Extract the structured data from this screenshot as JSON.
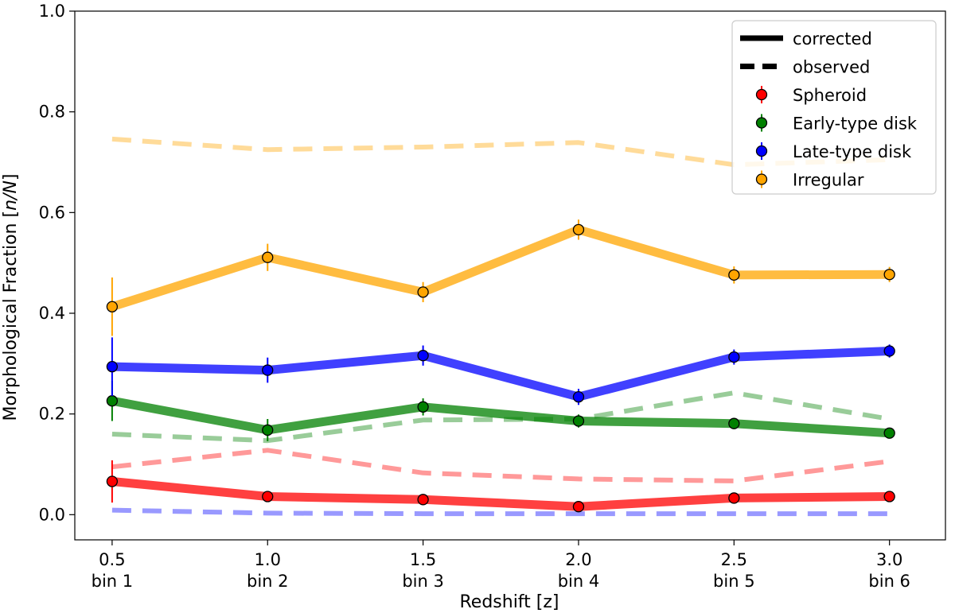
{
  "chart_data": {
    "type": "line",
    "xlabel": "Redshift [z]",
    "ylabel_prefix": "Morphological Fraction [",
    "ylabel_math": "n/N",
    "ylabel_suffix": "]",
    "xlim": [
      0.38,
      3.18
    ],
    "ylim": [
      -0.05,
      1.0
    ],
    "x": [
      0.5,
      1.0,
      1.5,
      2.0,
      2.5,
      3.0
    ],
    "xticks": [
      {
        "value": 0.5,
        "label": "0.5",
        "bin": "bin 1"
      },
      {
        "value": 1.0,
        "label": "1.0",
        "bin": "bin 2"
      },
      {
        "value": 1.5,
        "label": "1.5",
        "bin": "bin 3"
      },
      {
        "value": 2.0,
        "label": "2.0",
        "bin": "bin 4"
      },
      {
        "value": 2.5,
        "label": "2.5",
        "bin": "bin 5"
      },
      {
        "value": 3.0,
        "label": "3.0",
        "bin": "bin 6"
      }
    ],
    "yticks": [
      {
        "value": 0.0,
        "label": "0.0"
      },
      {
        "value": 0.2,
        "label": "0.2"
      },
      {
        "value": 0.4,
        "label": "0.4"
      },
      {
        "value": 0.6,
        "label": "0.6"
      },
      {
        "value": 0.8,
        "label": "0.8"
      },
      {
        "value": 1.0,
        "label": "1.0"
      }
    ],
    "series": [
      {
        "name": "Spheroid",
        "color": "#ff0000",
        "corrected": [
          0.066,
          0.036,
          0.03,
          0.016,
          0.033,
          0.036
        ],
        "errors": [
          0.042,
          0.008,
          0.007,
          0.006,
          0.006,
          0.007
        ],
        "observed": [
          0.095,
          0.128,
          0.083,
          0.071,
          0.067,
          0.106
        ]
      },
      {
        "name": "Early-type disk",
        "color": "#008000",
        "corrected": [
          0.226,
          0.168,
          0.214,
          0.186,
          0.181,
          0.162
        ],
        "errors": [
          0.04,
          0.022,
          0.017,
          0.013,
          0.011,
          0.009
        ],
        "observed": [
          0.16,
          0.147,
          0.188,
          0.19,
          0.242,
          0.19
        ]
      },
      {
        "name": "Late-type disk",
        "color": "#0000ff",
        "corrected": [
          0.294,
          0.287,
          0.316,
          0.234,
          0.313,
          0.325
        ],
        "errors": [
          0.058,
          0.025,
          0.02,
          0.016,
          0.015,
          0.013
        ],
        "observed": [
          0.009,
          0.003,
          0.002,
          0.002,
          0.002,
          0.002
        ]
      },
      {
        "name": "Irregular",
        "color": "#ffa500",
        "corrected": [
          0.413,
          0.511,
          0.442,
          0.566,
          0.476,
          0.477
        ],
        "errors": [
          0.058,
          0.027,
          0.02,
          0.02,
          0.017,
          0.015
        ],
        "observed": [
          0.746,
          0.725,
          0.73,
          0.739,
          0.695,
          0.705
        ]
      }
    ],
    "legend": {
      "placement": "top-right",
      "line_entries": [
        {
          "label": "corrected",
          "style": "solid"
        },
        {
          "label": "observed",
          "style": "dashed"
        }
      ]
    }
  }
}
